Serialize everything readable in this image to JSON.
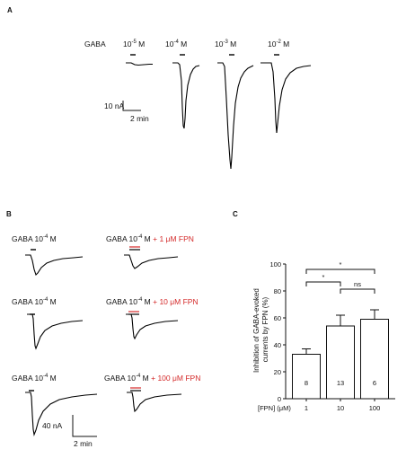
{
  "panels": {
    "a": "A",
    "b": "B",
    "c": "C"
  },
  "panel_a": {
    "gaba_label": "GABA",
    "concentrations": [
      {
        "base": "10",
        "exp": "-5",
        "unit": " M"
      },
      {
        "base": "10",
        "exp": "-4",
        "unit": " M"
      },
      {
        "base": "10",
        "exp": "-3",
        "unit": " M"
      },
      {
        "base": "10",
        "exp": "-2",
        "unit": " M"
      }
    ],
    "scale_current": "10 nA",
    "scale_time": "2 min"
  },
  "panel_b": {
    "rows": [
      {
        "control": {
          "base": "GABA 10",
          "exp": "-4",
          "unit": " M"
        },
        "treated": {
          "base": "GABA 10",
          "exp": "-4",
          "unit": " M",
          "fpn": " + 1 μM FPN"
        }
      },
      {
        "control": {
          "base": "GABA 10",
          "exp": "-4",
          "unit": " M"
        },
        "treated": {
          "base": "GABA 10",
          "exp": "-4",
          "unit": " M",
          "fpn": " + 10 μM FPN"
        }
      },
      {
        "control": {
          "base": "GABA 10",
          "exp": "-4",
          "unit": " M"
        },
        "treated": {
          "base": "GABA 10",
          "exp": "-4",
          "unit": " M",
          "fpn": " + 100 μM FPN"
        }
      }
    ],
    "scale_current": "40 nA",
    "scale_time": "2 min",
    "fpn_color": "#d42a2a"
  },
  "chart_data": {
    "type": "bar",
    "categories": [
      "1",
      "10",
      "100"
    ],
    "values": [
      33,
      54,
      59
    ],
    "errors": [
      4,
      8,
      7
    ],
    "n_labels": [
      "8",
      "13",
      "6"
    ],
    "ylabel_line1": "Inhibition of GABA-evoked",
    "ylabel_line2": "currents by FPN (%)",
    "xlabel": "[FPN] (μM)",
    "ylim": [
      0,
      100
    ],
    "yticks": [
      "0",
      "20",
      "40",
      "60",
      "80",
      "100"
    ],
    "significance": [
      {
        "from": 0,
        "to": 1,
        "label": "*"
      },
      {
        "from": 1,
        "to": 2,
        "label": "ns"
      },
      {
        "from": 0,
        "to": 2,
        "label": "*"
      }
    ]
  }
}
